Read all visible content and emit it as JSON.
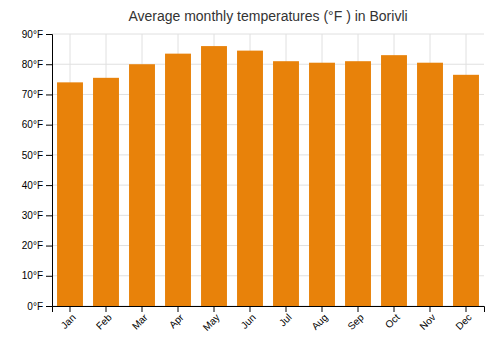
{
  "chart_data": {
    "type": "bar",
    "title": "Average monthly temperatures (°F ) in Borivli",
    "categories": [
      "Jan",
      "Feb",
      "Mar",
      "Apr",
      "May",
      "Jun",
      "Jul",
      "Aug",
      "Sep",
      "Oct",
      "Nov",
      "Dec"
    ],
    "values": [
      74,
      75.5,
      80,
      83.5,
      86,
      84.5,
      81,
      80.5,
      81,
      83,
      80.5,
      76.5
    ],
    "color": "#E8820A",
    "ylim": [
      0,
      90
    ],
    "yticks": [
      {
        "value": 0,
        "label": "0°F"
      },
      {
        "value": 10,
        "label": "10°F"
      },
      {
        "value": 20,
        "label": "20°F"
      },
      {
        "value": 30,
        "label": "30°F"
      },
      {
        "value": 40,
        "label": "40°F"
      },
      {
        "value": 50,
        "label": "50°F"
      },
      {
        "value": 60,
        "label": "60°F"
      },
      {
        "value": 70,
        "label": "70°F"
      },
      {
        "value": 80,
        "label": "80°F"
      },
      {
        "value": 90,
        "label": "90°F"
      }
    ],
    "grid": true
  }
}
